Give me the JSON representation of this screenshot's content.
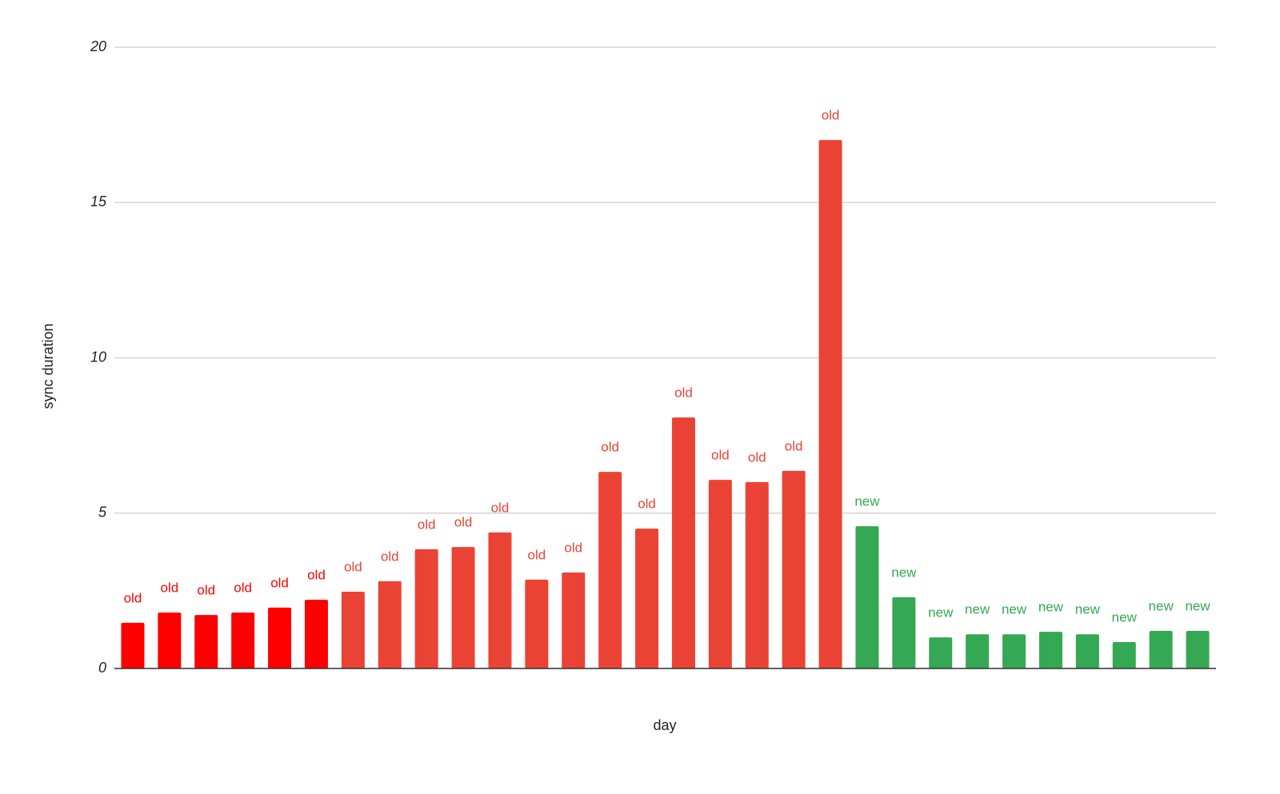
{
  "chart_data": {
    "type": "bar",
    "x_label": "day",
    "y_label": "sync duration",
    "categories": [
      null,
      null,
      null,
      null,
      null,
      null,
      null,
      null,
      null,
      null,
      null,
      null,
      null,
      null,
      null,
      null,
      null,
      null,
      null,
      null,
      null,
      null,
      null,
      null,
      null,
      null,
      null,
      null,
      null,
      null
    ],
    "values": [
      1.47,
      1.8,
      1.72,
      1.8,
      1.96,
      2.21,
      2.47,
      2.81,
      3.84,
      3.91,
      4.38,
      2.86,
      3.09,
      6.33,
      4.5,
      8.08,
      6.07,
      6.0,
      6.36,
      17.01,
      4.58,
      2.29,
      1.0,
      1.1,
      1.1,
      1.18,
      1.1,
      0.85,
      1.21,
      1.21
    ],
    "labels": [
      "old",
      "old",
      "old",
      "old",
      "old",
      "old",
      "old",
      "old",
      "old",
      "old",
      "old",
      "old",
      "old",
      "old",
      "old",
      "old",
      "old",
      "old",
      "old",
      "old",
      "new",
      "new",
      "new",
      "new",
      "new",
      "new",
      "new",
      "new",
      "new",
      "new"
    ],
    "colors": [
      "#ff0000",
      "#ff0000",
      "#ff0000",
      "#ff0000",
      "#ff0000",
      "#ff0000",
      "#ea4335",
      "#ea4335",
      "#ea4335",
      "#ea4335",
      "#ea4335",
      "#ea4335",
      "#ea4335",
      "#ea4335",
      "#ea4335",
      "#ea4335",
      "#ea4335",
      "#ea4335",
      "#ea4335",
      "#ea4335",
      "#34a853",
      "#34a853",
      "#34a853",
      "#34a853",
      "#34a853",
      "#34a853",
      "#34a853",
      "#34a853",
      "#34a853",
      "#34a853"
    ],
    "ylim": [
      0,
      20
    ],
    "yticks": [
      0,
      5,
      10,
      15,
      20
    ],
    "grid": true
  }
}
